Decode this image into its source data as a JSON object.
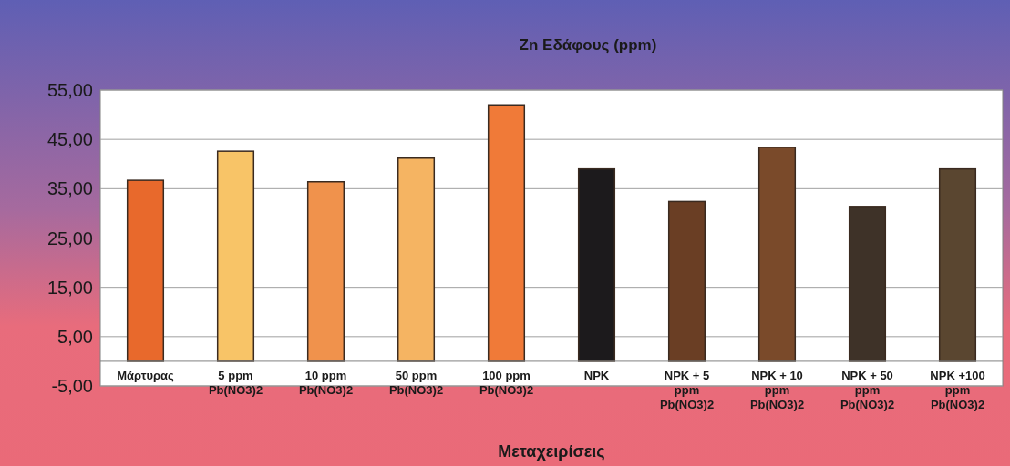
{
  "chart_data": {
    "type": "bar",
    "title": "Zn Εδάφους (ppm)",
    "xlabel": "Μεταχειρίσεις",
    "categories": [
      "Μάρτυρας",
      "5 ppm Pb(NO3)2",
      "10 ppm Pb(NO3)2",
      "50 ppm Pb(NO3)2",
      "100 ppm Pb(NO3)2",
      "NPK",
      "NPK + 5 ppm Pb(NO3)2",
      "NPK + 10 ppm Pb(NO3)2",
      "NPK + 50 ppm Pb(NO3)2",
      "NPK +100 ppm Pb(NO3)2"
    ],
    "values": [
      36.7,
      42.6,
      36.4,
      41.2,
      52.0,
      39.0,
      32.4,
      43.4,
      31.4,
      39.0
    ],
    "colors": [
      "#e8692c",
      "#f8c467",
      "#f0924c",
      "#f5b462",
      "#f07a38",
      "#1c1a1c",
      "#6a3e24",
      "#7a4a2a",
      "#3e3228",
      "#5a4630"
    ],
    "ylim": [
      -5,
      55
    ],
    "yticks": [
      {
        "value": -5,
        "label": "-5,00"
      },
      {
        "value": 5,
        "label": "5,00"
      },
      {
        "value": 15,
        "label": "15,00"
      },
      {
        "value": 25,
        "label": "25,00"
      },
      {
        "value": 35,
        "label": "35,00"
      },
      {
        "value": 45,
        "label": "45,00"
      },
      {
        "value": 55,
        "label": "55,00"
      }
    ],
    "grid": "y"
  }
}
